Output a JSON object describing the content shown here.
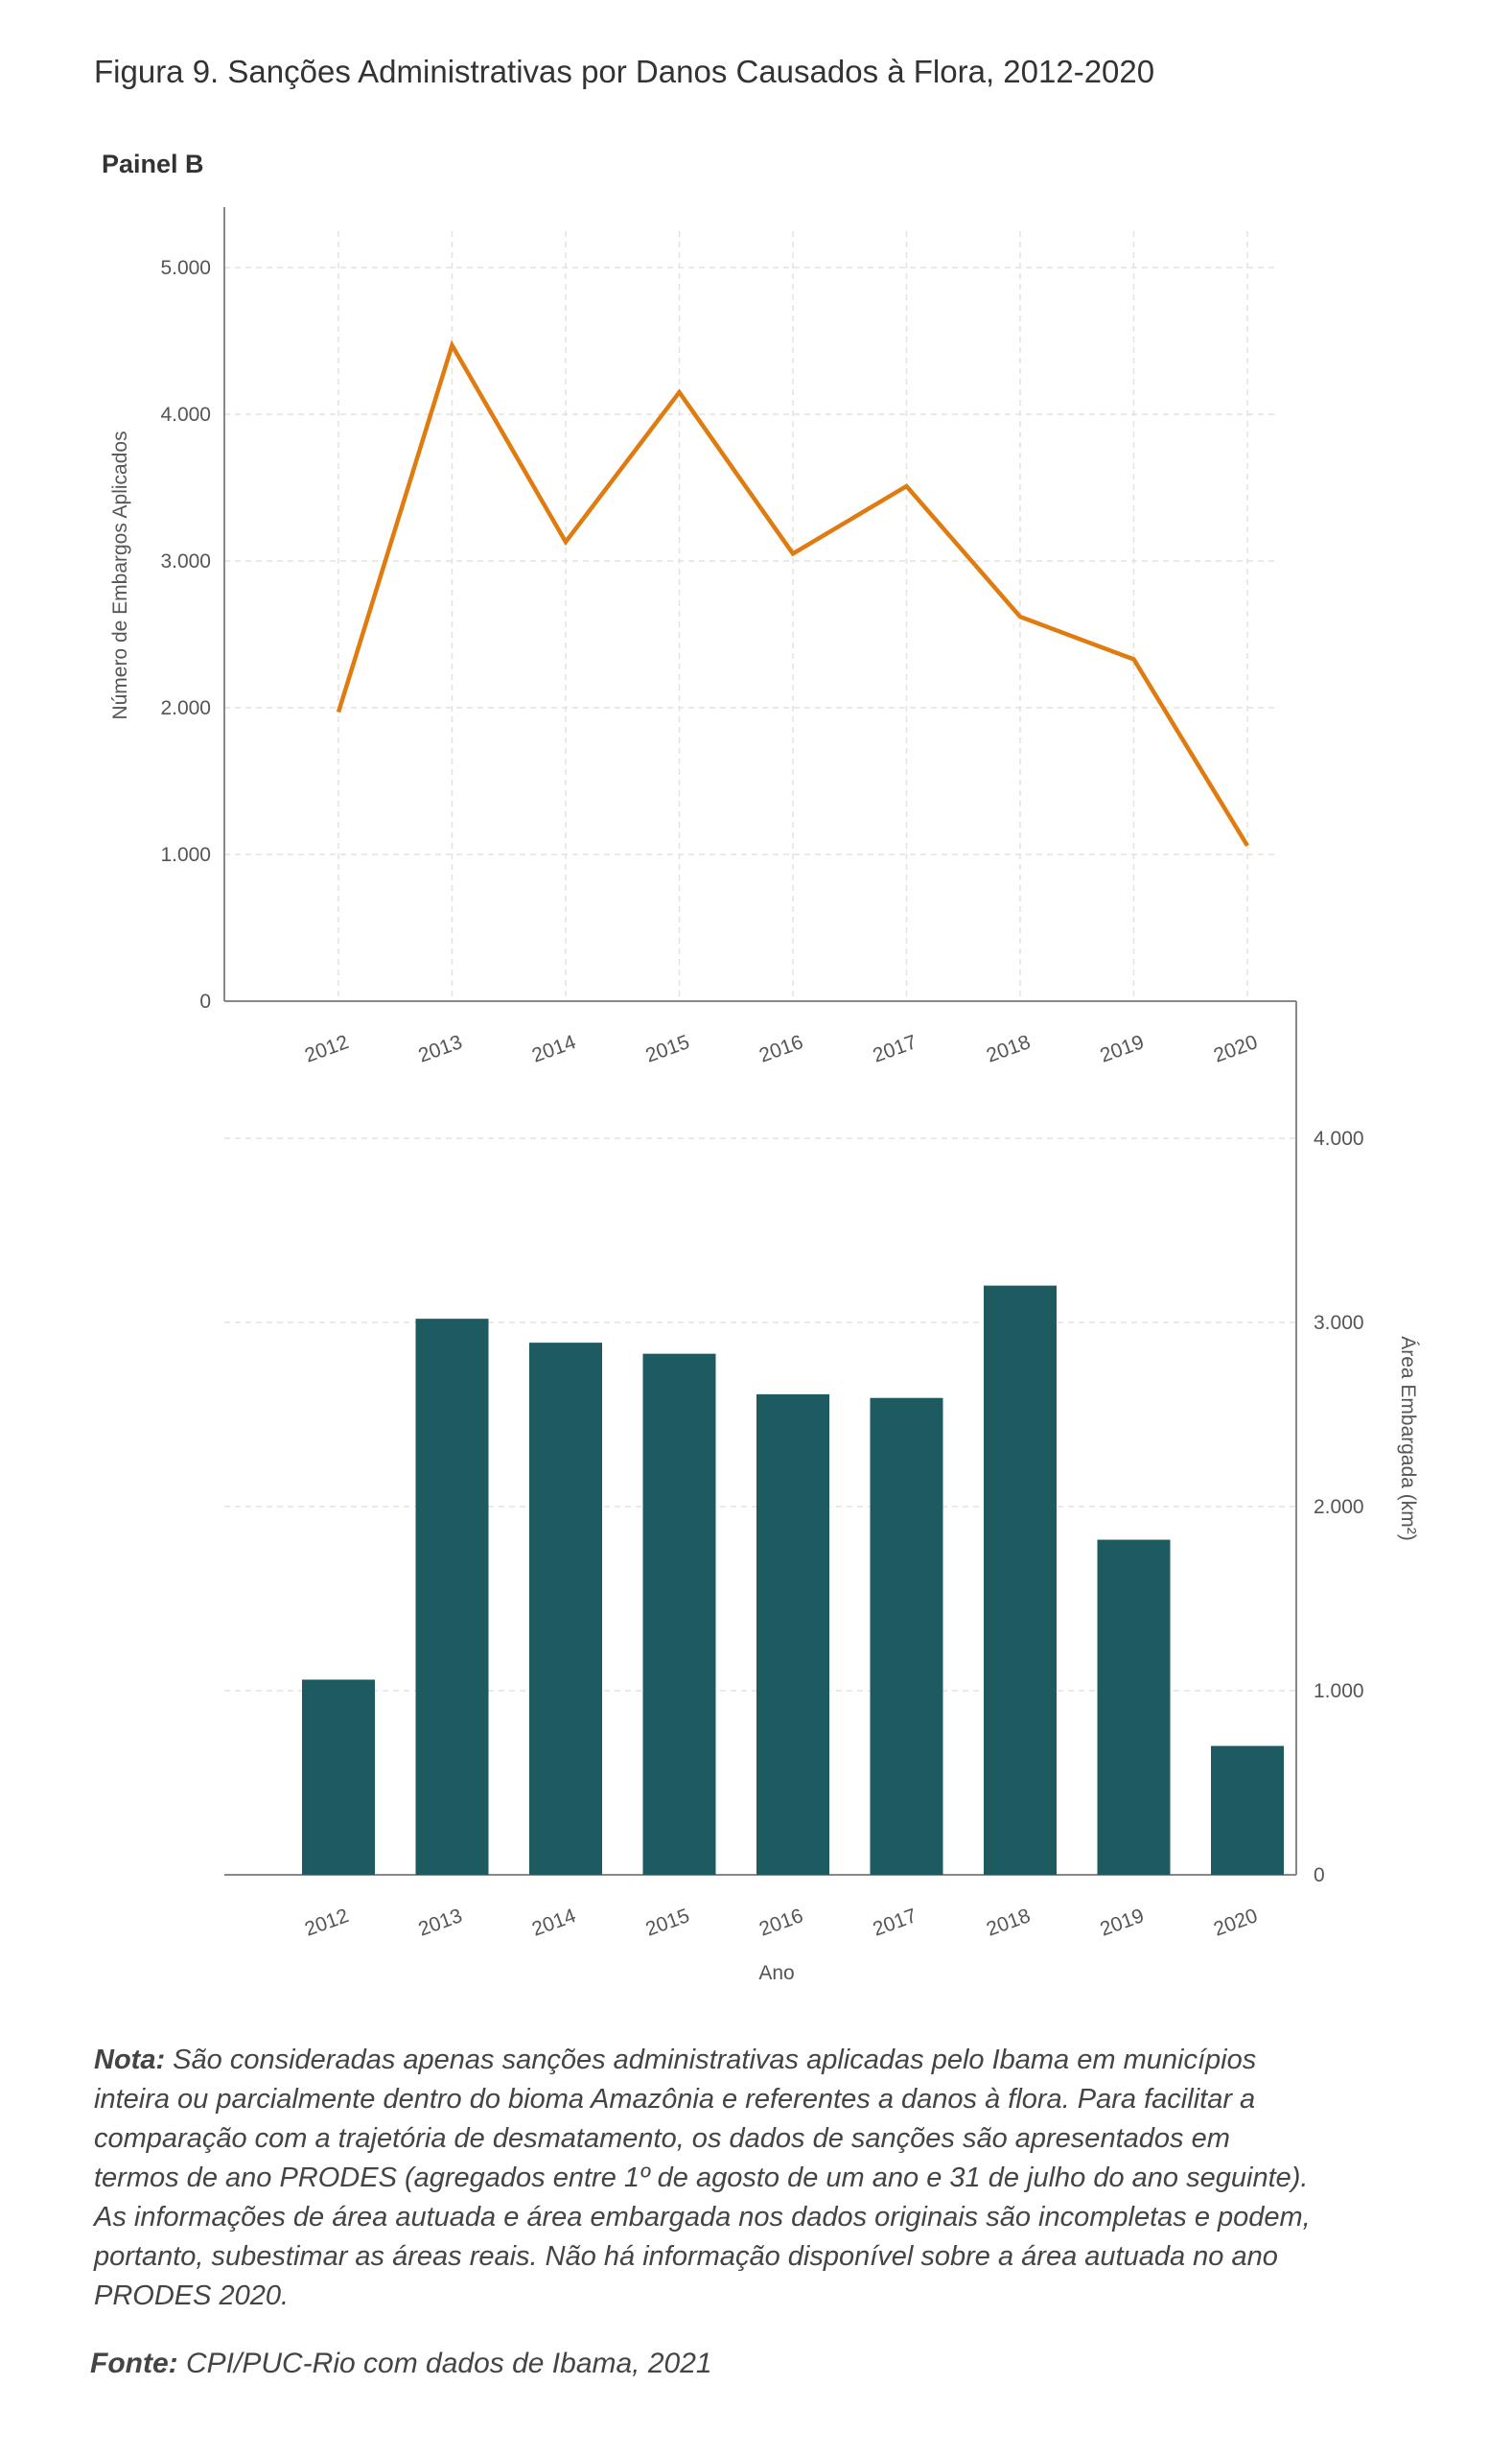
{
  "figure_title": "Figura 9. Sanções Administrativas por Danos Causados à Flora, 2012-2020",
  "panel_label": "Painel B",
  "note_label": "Nota:",
  "note_text": "São consideradas apenas sanções administrativas aplicadas pelo Ibama em municípios inteira ou parcialmente dentro do bioma Amazônia e referentes a danos à flora. Para facilitar a comparação com a trajetória de desmatamento, os dados de sanções são apresentados em termos de ano PRODES (agregados entre 1º de agosto de um ano e 31 de julho do ano seguinte). As informações de área autuada e área embargada nos dados originais são incompletas e podem, portanto, subestimar as áreas reais. Não há informação disponível sobre a área autuada no ano PRODES 2020.",
  "source_label": "Fonte:",
  "source_text": "CPI/PUC-Rio com dados de Ibama, 2021",
  "colors": {
    "line": "#E07B10",
    "bar": "#1E5B61",
    "grid": "#E2E2E2",
    "axis": "#888888"
  },
  "chart_data": [
    {
      "type": "line",
      "categories": [
        "2012",
        "2013",
        "2014",
        "2015",
        "2016",
        "2017",
        "2018",
        "2019",
        "2020"
      ],
      "values": [
        1970,
        4470,
        3130,
        4150,
        3050,
        3510,
        2620,
        2330,
        1060
      ],
      "ylabel": "Número de Embargos Aplicados",
      "xlabel": "",
      "ylim": [
        0,
        5000
      ],
      "yticks": [
        0,
        1000,
        2000,
        3000,
        4000,
        5000
      ],
      "ytick_labels": [
        "0",
        "1.000",
        "2.000",
        "3.000",
        "4.000",
        "5.000"
      ],
      "y_axis_side": "left",
      "grid": true
    },
    {
      "type": "bar",
      "categories": [
        "2012",
        "2013",
        "2014",
        "2015",
        "2016",
        "2017",
        "2018",
        "2019",
        "2020"
      ],
      "values": [
        1060,
        3020,
        2890,
        2830,
        2610,
        2590,
        3200,
        1820,
        700
      ],
      "ylabel": "Área Embargada (km²)",
      "xlabel": "Ano",
      "ylim": [
        0,
        4000
      ],
      "yticks": [
        0,
        1000,
        2000,
        3000,
        4000
      ],
      "ytick_labels": [
        "0",
        "1.000",
        "2.000",
        "3.000",
        "4.000"
      ],
      "y_axis_side": "right",
      "grid": true
    }
  ]
}
